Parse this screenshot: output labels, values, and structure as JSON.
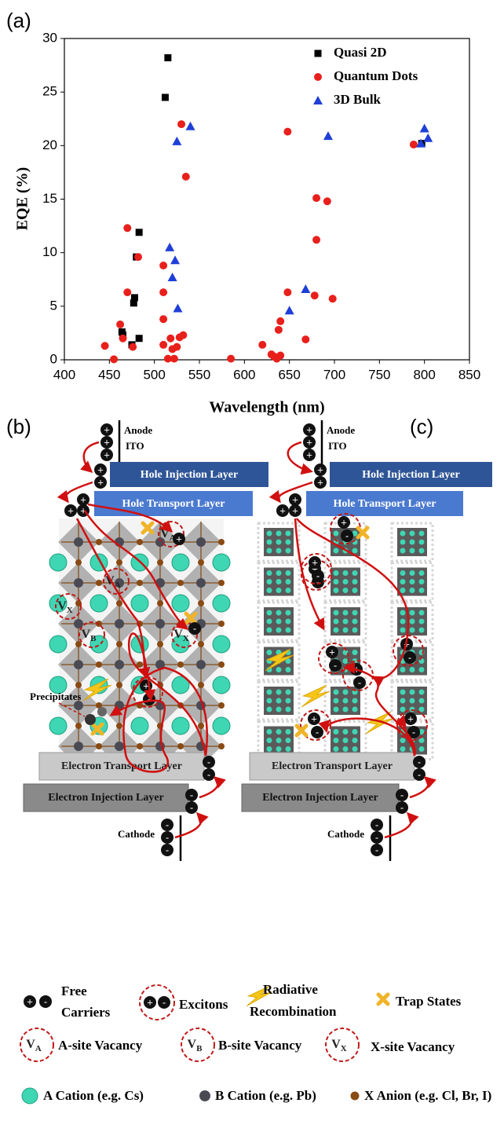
{
  "chart_data": {
    "type": "scatter",
    "panel_label": "(a)",
    "xlabel": "Wavelength (nm)",
    "ylabel": "EQE (%)",
    "xlim": [
      400,
      850
    ],
    "ylim": [
      0,
      30
    ],
    "xticks": [
      400,
      450,
      500,
      550,
      600,
      650,
      700,
      750,
      800,
      850
    ],
    "yticks": [
      0,
      5,
      10,
      15,
      20,
      25,
      30
    ],
    "legend": "upper right",
    "series": [
      {
        "name": "Quasi 2D",
        "color": "#000000",
        "marker": "square",
        "x": [
          515,
          512,
          483,
          480,
          478,
          477,
          464,
          465,
          475,
          483,
          797
        ],
        "y": [
          28.2,
          24.5,
          11.9,
          9.6,
          5.8,
          5.3,
          2.6,
          2.3,
          1.4,
          2.0,
          20.2
        ]
      },
      {
        "name": "Quantum Dots",
        "color": "#e8201c",
        "marker": "circle",
        "x": [
          445,
          455,
          462,
          465,
          470,
          470,
          476,
          482,
          510,
          510,
          510,
          510,
          515,
          518,
          520,
          522,
          525,
          528,
          532,
          530,
          535,
          585,
          620,
          630,
          633,
          636,
          638,
          640,
          640,
          648,
          648,
          668,
          678,
          680,
          680,
          692,
          698,
          788
        ],
        "y": [
          1.3,
          0.05,
          3.3,
          2.0,
          12.3,
          6.3,
          1.2,
          9.6,
          8.8,
          6.3,
          3.8,
          1.4,
          0.1,
          2.0,
          1.0,
          0.1,
          1.2,
          2.1,
          2.3,
          22.0,
          17.1,
          0.1,
          1.4,
          0.5,
          0.3,
          0.1,
          2.8,
          3.6,
          0.4,
          21.3,
          6.3,
          1.9,
          6.0,
          15.1,
          11.2,
          14.8,
          5.7,
          20.1
        ]
      },
      {
        "name": "3D Bulk",
        "color": "#1f3fd8",
        "marker": "triangle",
        "x": [
          525,
          540,
          517,
          520,
          523,
          526,
          650,
          668,
          693,
          800,
          804,
          796
        ],
        "y": [
          20.4,
          21.8,
          10.5,
          7.7,
          9.3,
          4.8,
          4.6,
          6.6,
          20.9,
          21.6,
          20.7,
          20.2
        ]
      }
    ]
  },
  "panels": {
    "b": "(b)",
    "c": "(c)"
  },
  "device": {
    "anode": "Anode",
    "ito": "ITO",
    "hil": "Hole Injection Layer",
    "htl": "Hole Transport Layer",
    "etl": "Electron Transport Layer",
    "eil": "Electron Injection Layer",
    "cathode": "Cathode",
    "precipitates": "Precipitates"
  },
  "signs": {
    "plus": "+",
    "minus": "-"
  },
  "vacancy": {
    "symbol": "V",
    "sites": [
      "A",
      "B",
      "X"
    ]
  },
  "legend": {
    "free": "Free",
    "carriers": "Carriers",
    "excitons": "Excitons",
    "radiative": "Radiative",
    "recombination": "Recombination",
    "trap": "Trap States",
    "a_vac": "A-site Vacancy",
    "b_vac": "B-site Vacancy",
    "x_vac": "X-site Vacancy",
    "a_cation": "A Cation (e.g. Cs)",
    "b_cation": "B Cation (e.g. Pb)",
    "x_anion": "X Anion (e.g. Cl, Br, I)"
  }
}
